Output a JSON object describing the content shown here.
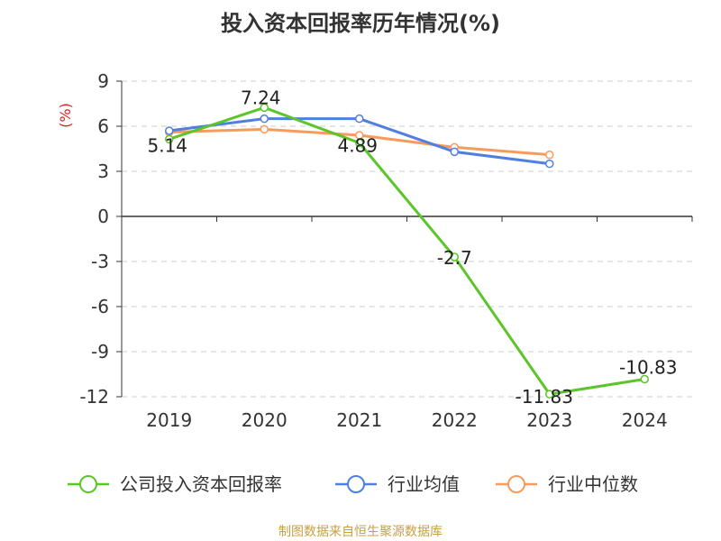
{
  "chart_data": {
    "type": "line",
    "title": "投入资本回报率历年情况(%)",
    "ylabel": "(%)",
    "categories": [
      "2019",
      "2020",
      "2021",
      "2022",
      "2023",
      "2024"
    ],
    "ylim": [
      -12,
      9
    ],
    "yticks": [
      9,
      6,
      3,
      0,
      -3,
      -6,
      -9,
      -12
    ],
    "grid": true,
    "legend_position": "bottom",
    "series": [
      {
        "name": "公司投入资本回报率",
        "color": "#5cc52a",
        "values": [
          5.14,
          7.24,
          4.89,
          -2.7,
          -11.83,
          -10.83
        ],
        "labels": [
          "5.14",
          "7.24",
          "4.89",
          "-2.7",
          "-11.83",
          "-10.83"
        ]
      },
      {
        "name": "行业均值",
        "color": "#4f7fe0",
        "values": [
          5.7,
          6.5,
          6.5,
          4.3,
          3.5,
          null
        ]
      },
      {
        "name": "行业中位数",
        "color": "#f89a5c",
        "values": [
          5.6,
          5.8,
          5.4,
          4.6,
          4.1,
          null
        ]
      }
    ],
    "source": "制图数据来自恒生聚源数据库"
  }
}
